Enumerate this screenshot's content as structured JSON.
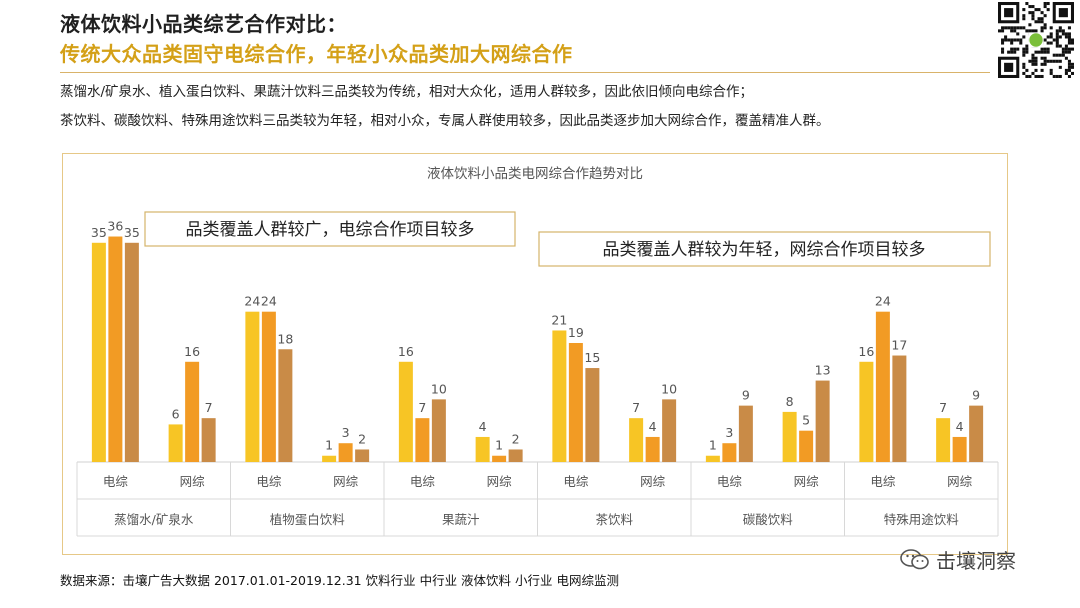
{
  "header": {
    "title_line1": "液体饮料小品类综艺合作对比：",
    "title_line2": "传统大众品类固守电综合作，年轻小众品类加大网综合作",
    "desc_line1": "蒸馏水/矿泉水、植入蛋白饮料、果蔬汁饮料三品类较为传统，相对大众化，适用人群较多，因此依旧倾向电综合作；",
    "desc_line2": "茶饮料、碳酸饮料、特殊用途饮料三品类较为年轻，相对小众，专属人群使用较多，因此品类逐步加大网综合作，覆盖精准人群。"
  },
  "chart_data": {
    "type": "bar",
    "title": "液体饮料小品类电网综合作趋势对比",
    "series_colors": [
      "#f7c525",
      "#f29b24",
      "#c98b47"
    ],
    "groups": [
      {
        "category": "蒸馏水/矿泉水",
        "subgroups": [
          {
            "label": "电综",
            "values": [
              35,
              36,
              35
            ]
          },
          {
            "label": "网综",
            "values": [
              6,
              16,
              7
            ]
          }
        ]
      },
      {
        "category": "植物蛋白饮料",
        "subgroups": [
          {
            "label": "电综",
            "values": [
              24,
              24,
              18
            ]
          },
          {
            "label": "网综",
            "values": [
              1,
              3,
              2
            ]
          }
        ]
      },
      {
        "category": "果蔬汁",
        "subgroups": [
          {
            "label": "电综",
            "values": [
              16,
              7,
              10
            ]
          },
          {
            "label": "网综",
            "values": [
              4,
              1,
              2
            ]
          }
        ]
      },
      {
        "category": "茶饮料",
        "subgroups": [
          {
            "label": "电综",
            "values": [
              21,
              19,
              15
            ]
          },
          {
            "label": "网综",
            "values": [
              7,
              4,
              10
            ]
          }
        ]
      },
      {
        "category": "碳酸饮料",
        "subgroups": [
          {
            "label": "电综",
            "values": [
              1,
              3,
              9
            ]
          },
          {
            "label": "网综",
            "values": [
              8,
              5,
              13
            ]
          }
        ]
      },
      {
        "category": "特殊用途饮料",
        "subgroups": [
          {
            "label": "电综",
            "values": [
              16,
              24,
              17
            ]
          },
          {
            "label": "网综",
            "values": [
              7,
              4,
              9
            ]
          }
        ]
      }
    ],
    "ylim": [
      0,
      38
    ],
    "annotations": [
      "品类覆盖人群较广，电综合作项目较多",
      "品类覆盖人群较为年轻，网综合作项目较多"
    ]
  },
  "footer": {
    "source": "数据来源：击壤广告大数据 2017.01.01-2019.12.31 饮料行业 中行业 液体饮料  小行业 电网综监测"
  },
  "brand": {
    "name": "击壤洞察",
    "icon": "wechat-icon"
  },
  "qr_icon": "qr-code-icon"
}
